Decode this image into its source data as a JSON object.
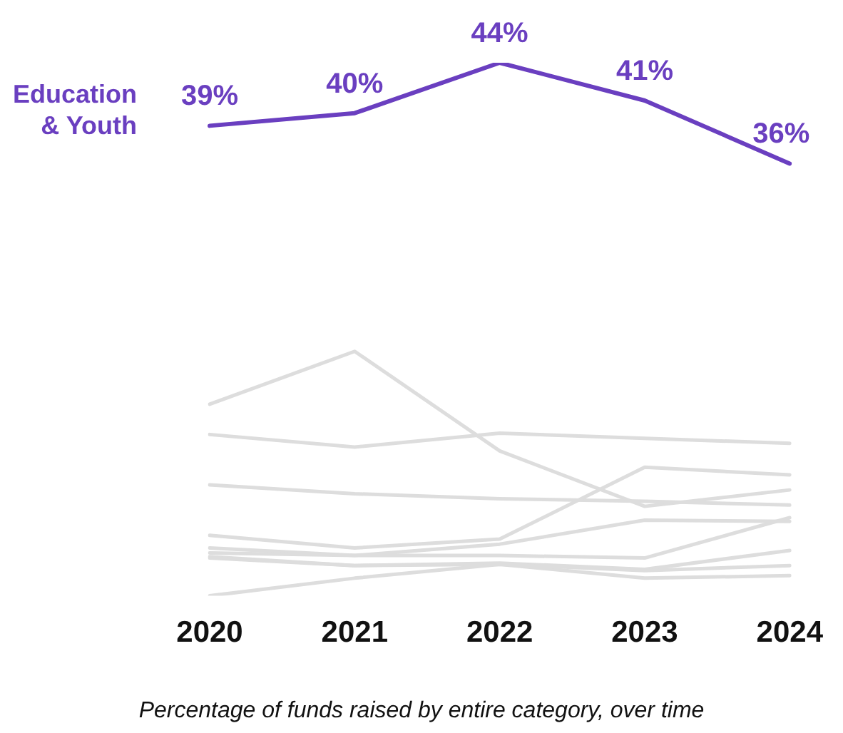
{
  "chart_data": {
    "type": "line",
    "categories": [
      "2020",
      "2021",
      "2022",
      "2023",
      "2024"
    ],
    "tick_labels": "x",
    "grid": false,
    "legend": false,
    "marker": "none",
    "annotations": [
      "Percentage of funds raised by entire category, over time"
    ],
    "series": [
      {
        "name": "Education & Youth",
        "color": "#6a3fc0",
        "values": [
          39,
          40,
          44,
          41,
          36
        ],
        "value_labels": [
          "39%",
          "40%",
          "44%",
          "41%",
          "36%"
        ]
      },
      {
        "color": "#dddddd",
        "values": [
          16.9,
          21.1,
          13.2,
          8.8,
          10.1
        ]
      },
      {
        "color": "#dddddd",
        "values": [
          14.5,
          13.5,
          14.6,
          14.2,
          13.8
        ]
      },
      {
        "color": "#dddddd",
        "values": [
          10.5,
          9.8,
          9.4,
          9.2,
          8.9
        ]
      },
      {
        "color": "#dddddd",
        "values": [
          6.5,
          5.5,
          6.2,
          11.9,
          11.3
        ]
      },
      {
        "color": "#dddddd",
        "values": [
          5.5,
          4.9,
          5.8,
          7.7,
          7.6
        ]
      },
      {
        "color": "#dddddd",
        "values": [
          5.1,
          4.9,
          4.9,
          4.7,
          7.9
        ]
      },
      {
        "color": "#dddddd",
        "values": [
          4.8,
          4.1,
          4.3,
          3.8,
          5.3
        ]
      },
      {
        "color": "#dddddd",
        "values": [
          4.7,
          4.1,
          4.2,
          3.1,
          3.3
        ]
      },
      {
        "color": "#dddddd",
        "values": [
          1.7,
          3.1,
          4.2,
          3.7,
          4.1
        ]
      }
    ]
  }
}
